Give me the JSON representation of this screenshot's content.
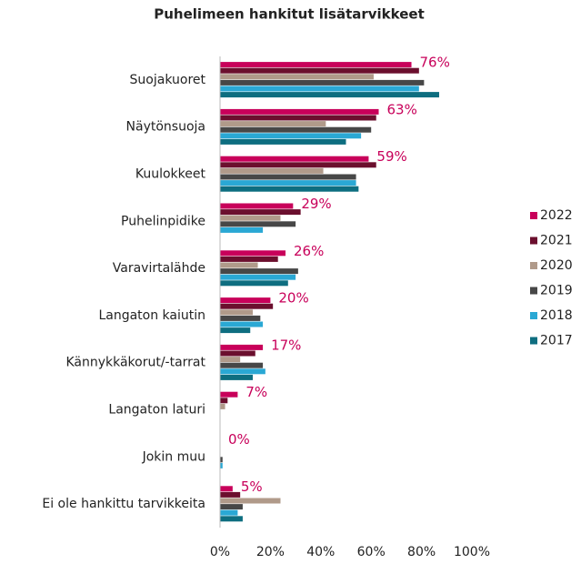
{
  "chart_data": {
    "type": "hbar",
    "title": "Puhelimeen hankitut lisätarvikkeet",
    "categories": [
      "Suojakuoret",
      "Näytönsuoja",
      "Kuulokkeet",
      "Puhelinpidike",
      "Varavirtalähde",
      "Langaton kaiutin",
      "Kännykkäkorut/-tarrat",
      "Langaton laturi",
      "Jokin muu",
      "Ei ole hankittu tarvikkeita"
    ],
    "series": [
      {
        "name": "2022",
        "color": "#c8005a",
        "values": [
          76,
          63,
          59,
          29,
          26,
          20,
          17,
          7,
          0,
          5
        ],
        "value_labels": [
          "76%",
          "63%",
          "59%",
          "29%",
          "26%",
          "20%",
          "17%",
          "7%",
          "0%",
          "5%"
        ]
      },
      {
        "name": "2021",
        "color": "#6b0f2e",
        "values": [
          79,
          62,
          62,
          32,
          23,
          21,
          14,
          3,
          null,
          8
        ]
      },
      {
        "name": "2020",
        "color": "#b09a8a",
        "values": [
          61,
          42,
          41,
          24,
          15,
          13,
          8,
          2,
          null,
          24
        ]
      },
      {
        "name": "2019",
        "color": "#474747",
        "values": [
          81,
          60,
          54,
          30,
          31,
          16,
          17,
          null,
          1,
          9
        ]
      },
      {
        "name": "2018",
        "color": "#2aa8d4",
        "values": [
          79,
          56,
          54,
          17,
          30,
          17,
          18,
          null,
          1,
          7
        ]
      },
      {
        "name": "2017",
        "color": "#0e6e80",
        "values": [
          87,
          50,
          55,
          null,
          27,
          12,
          13,
          null,
          null,
          9
        ]
      }
    ],
    "xlim": [
      0,
      100
    ],
    "xticks": [
      {
        "value": 0,
        "label": "0%"
      },
      {
        "value": 20,
        "label": "20%"
      },
      {
        "value": 40,
        "label": "40%"
      },
      {
        "value": 60,
        "label": "60%"
      },
      {
        "value": 80,
        "label": "80%"
      },
      {
        "value": 100,
        "label": "100%"
      }
    ],
    "legend": "right"
  }
}
